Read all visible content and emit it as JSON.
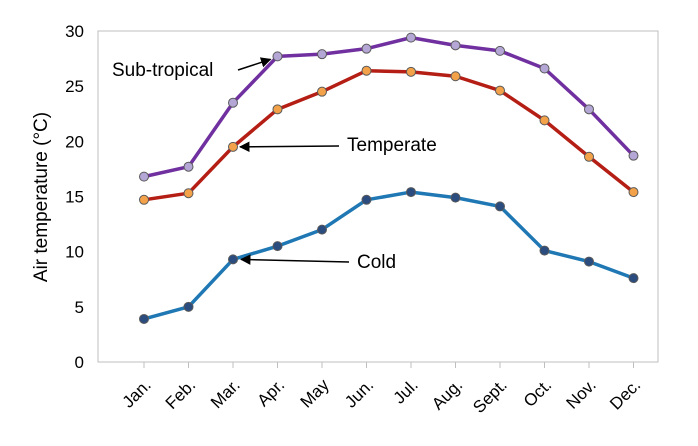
{
  "chart_data": {
    "type": "line",
    "title": "",
    "xlabel": "",
    "ylabel": "Air temperature (°C)",
    "ylim": [
      0,
      30
    ],
    "yticks": [
      0,
      5,
      10,
      15,
      20,
      25,
      30
    ],
    "grid": false,
    "categories": [
      "Jan.",
      "Feb.",
      "Mar.",
      "Apr.",
      "May",
      "Jun.",
      "Jul.",
      "Aug.",
      "Sept.",
      "Oct.",
      "Nov.",
      "Dec."
    ],
    "series": [
      {
        "name": "Sub-tropical",
        "line_color": "#7030A0",
        "marker_color": "#B4A7D6",
        "values": [
          16.8,
          17.7,
          23.5,
          27.7,
          27.9,
          28.4,
          29.4,
          28.7,
          28.2,
          26.6,
          22.9,
          18.7
        ]
      },
      {
        "name": "Temperate",
        "line_color": "#B41E14",
        "marker_color": "#F4A24A",
        "values": [
          14.7,
          15.3,
          19.5,
          22.9,
          24.5,
          26.4,
          26.3,
          25.9,
          24.6,
          21.9,
          18.6,
          15.4
        ]
      },
      {
        "name": "Cold",
        "line_color": "#1F78B4",
        "marker_color": "#2B4C7E",
        "values": [
          3.9,
          5.0,
          9.3,
          10.5,
          12.0,
          14.7,
          15.4,
          14.9,
          14.1,
          10.1,
          9.1,
          7.6
        ]
      }
    ],
    "annotations": [
      {
        "text": "Sub-tropical",
        "series": 0,
        "point": 3
      },
      {
        "text": "Temperate",
        "series": 1,
        "point": 2
      },
      {
        "text": "Cold",
        "series": 2,
        "point": 2
      }
    ]
  }
}
